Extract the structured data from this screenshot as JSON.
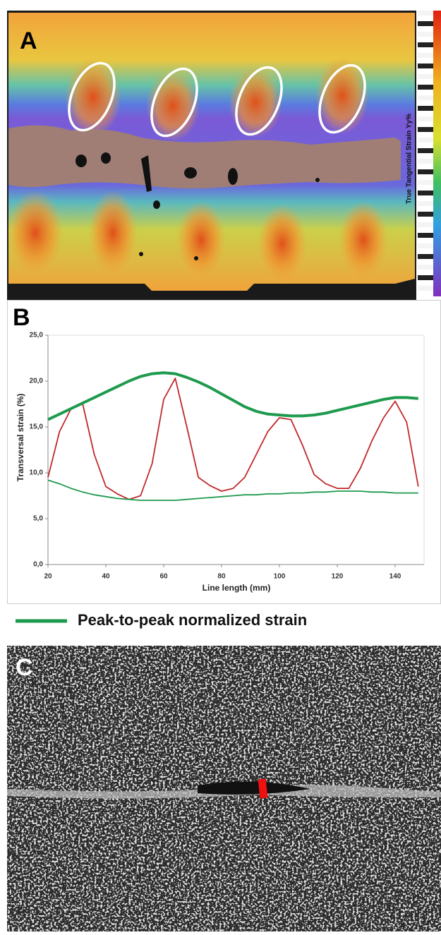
{
  "panels": {
    "A": {
      "label": "A",
      "colorbar_label": "True Tangential Strain Yy%"
    },
    "B": {
      "label": "B"
    },
    "C": {
      "label": "C"
    }
  },
  "chart_data": {
    "type": "line",
    "x_label": "Line length (mm)",
    "y_label": "Transversal strain (%)",
    "x": [
      20,
      24,
      28,
      32,
      36,
      40,
      44,
      48,
      52,
      56,
      60,
      64,
      68,
      72,
      76,
      80,
      84,
      88,
      92,
      96,
      100,
      104,
      108,
      112,
      116,
      120,
      124,
      128,
      132,
      136,
      140,
      144,
      148
    ],
    "series": [
      {
        "color": "#c0282a",
        "values": [
          9.5,
          14.5,
          17,
          17.5,
          12,
          8.5,
          7.7,
          7.1,
          7.5,
          11,
          18,
          20.3,
          15,
          9.5,
          8.6,
          8,
          8.3,
          9.5,
          12,
          14.5,
          16,
          15.8,
          13,
          9.8,
          8.8,
          8.3,
          8.3,
          10.5,
          13.5,
          16,
          17.8,
          15.5,
          8.5
        ]
      },
      {
        "name": "Peak-to-peak normalized strain",
        "color": "#1e9a4e",
        "values": [
          15.8,
          16.4,
          17,
          17.6,
          18.2,
          18.8,
          19.4,
          20,
          20.5,
          20.8,
          20.9,
          20.8,
          20.4,
          19.9,
          19.3,
          18.6,
          17.9,
          17.2,
          16.7,
          16.4,
          16.3,
          16.2,
          16.2,
          16.3,
          16.5,
          16.8,
          17.1,
          17.4,
          17.7,
          18,
          18.2,
          18.2,
          18.1
        ]
      },
      {
        "color": "#1e9a4e",
        "values": [
          9.2,
          8.8,
          8.3,
          7.9,
          7.6,
          7.4,
          7.2,
          7.1,
          7.0,
          7.0,
          7.0,
          7.0,
          7.1,
          7.2,
          7.3,
          7.4,
          7.5,
          7.6,
          7.6,
          7.7,
          7.7,
          7.8,
          7.8,
          7.9,
          7.9,
          8.0,
          8.0,
          8.0,
          7.9,
          7.9,
          7.8,
          7.8,
          7.8
        ]
      }
    ],
    "xlim": [
      20,
      150
    ],
    "xticks": [
      20,
      40,
      60,
      80,
      100,
      120,
      140
    ],
    "ylim": [
      0,
      25
    ],
    "yticks": [
      {
        "value": 0,
        "label": "0,0"
      },
      {
        "value": 5,
        "label": "5,0"
      },
      {
        "value": 10,
        "label": "10,0"
      },
      {
        "value": 15,
        "label": "15,0"
      },
      {
        "value": 20,
        "label": "20,0"
      },
      {
        "value": 25,
        "label": "25,0"
      }
    ],
    "grid": false
  }
}
